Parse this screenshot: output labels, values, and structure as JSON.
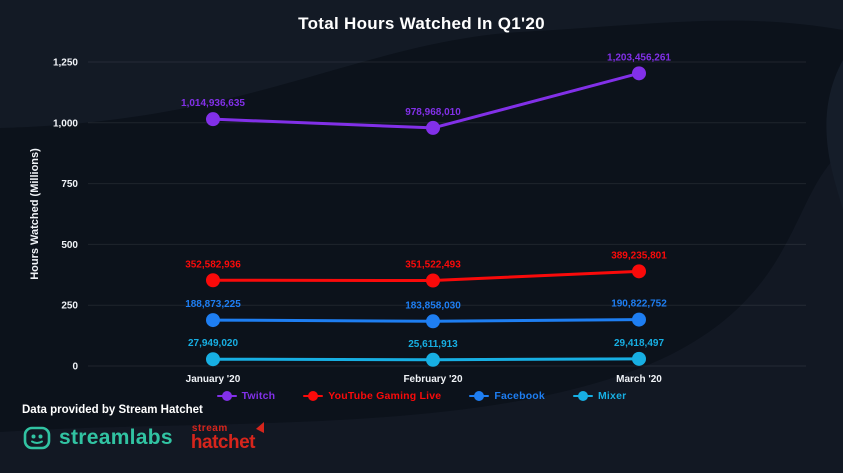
{
  "page": {
    "title": "Total Hours Watched In Q1'20"
  },
  "footer": {
    "attribution": "Data provided by Stream Hatchet",
    "streamlabs_wordmark": "streamlabs",
    "streamhatchet_top": "stream",
    "streamhatchet_bottom": "hatchet"
  },
  "colors": {
    "background": "#0c121b",
    "wave": "#131a25",
    "grid": "rgba(255,255,255,0.08)",
    "text": "#f0f3f7",
    "streamlabs_teal": "#31c3a2",
    "streamhatchet_red": "#d7251c"
  },
  "chart_data": {
    "type": "line",
    "title": "Total Hours Watched In Q1'20",
    "xlabel": "",
    "ylabel": "Hours Watched (Millions)",
    "categories": [
      "January '20",
      "February '20",
      "March '20"
    ],
    "ylim": [
      0,
      1250
    ],
    "yticks": [
      0,
      250,
      500,
      750,
      1000,
      1250
    ],
    "ytick_labels": [
      "0",
      "250",
      "500",
      "750",
      "1,000",
      "1,250"
    ],
    "grid": true,
    "legend_position": "bottom",
    "units": "hours",
    "series": [
      {
        "name": "Twitch",
        "color": "#8230e8",
        "values": [
          1014936635,
          978968010,
          1203456261
        ],
        "labels": [
          "1,014,936,635",
          "978,968,010",
          "1,203,456,261"
        ]
      },
      {
        "name": "YouTube Gaming Live",
        "color": "#fa0a0a",
        "values": [
          352582936,
          351522493,
          389235801
        ],
        "labels": [
          "352,582,936",
          "351,522,493",
          "389,235,801"
        ]
      },
      {
        "name": "Facebook",
        "color": "#1e7ef2",
        "values": [
          188873225,
          183858030,
          190822752
        ],
        "labels": [
          "188,873,225",
          "183,858,030",
          "190,822,752"
        ]
      },
      {
        "name": "Mixer",
        "color": "#17afe3",
        "values": [
          27949020,
          25611913,
          29418497
        ],
        "labels": [
          "27,949,020",
          "25,611,913",
          "29,418,497"
        ]
      }
    ]
  }
}
